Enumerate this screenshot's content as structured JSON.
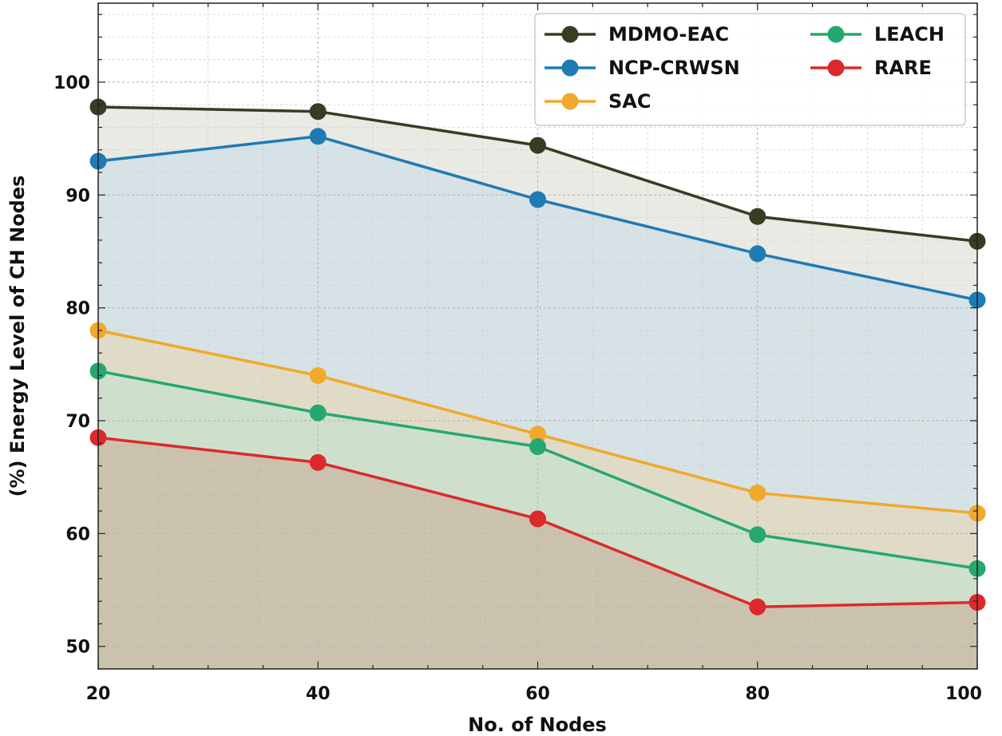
{
  "chart_data": {
    "type": "line",
    "x": [
      20,
      40,
      60,
      80,
      100
    ],
    "xlabel": "No. of Nodes",
    "ylabel": "(%) Energy Level of CH Nodes",
    "xlim": [
      20,
      100
    ],
    "ylim": [
      48,
      107
    ],
    "xticks": [
      20,
      40,
      60,
      80,
      100
    ],
    "yticks": [
      50,
      60,
      70,
      80,
      90,
      100
    ],
    "grid": true,
    "legend_position": "top-right",
    "series": [
      {
        "name": "MDMO-EAC",
        "values": [
          97.8,
          97.4,
          94.4,
          88.1,
          85.9
        ],
        "color": "#363d22",
        "fill": "#e9eae4"
      },
      {
        "name": "NCP-CRWSN",
        "values": [
          93.0,
          95.2,
          89.6,
          84.8,
          80.7
        ],
        "color": "#1f7bb4",
        "fill": "#d6e2e6"
      },
      {
        "name": "SAC",
        "values": [
          78.0,
          74.0,
          68.8,
          63.6,
          61.8
        ],
        "color": "#f0a92a",
        "fill": "#e0dbc6"
      },
      {
        "name": "LEACH",
        "values": [
          74.4,
          70.7,
          67.7,
          59.9,
          56.9
        ],
        "color": "#25a86f",
        "fill": "#cee0cc"
      },
      {
        "name": "RARE",
        "values": [
          68.5,
          66.3,
          61.3,
          53.5,
          53.9
        ],
        "color": "#dc2a2c",
        "fill": "#cbc2ad"
      }
    ],
    "legend_order": [
      "MDMO-EAC",
      "NCP-CRWSN",
      "SAC",
      "LEACH",
      "RARE"
    ]
  }
}
